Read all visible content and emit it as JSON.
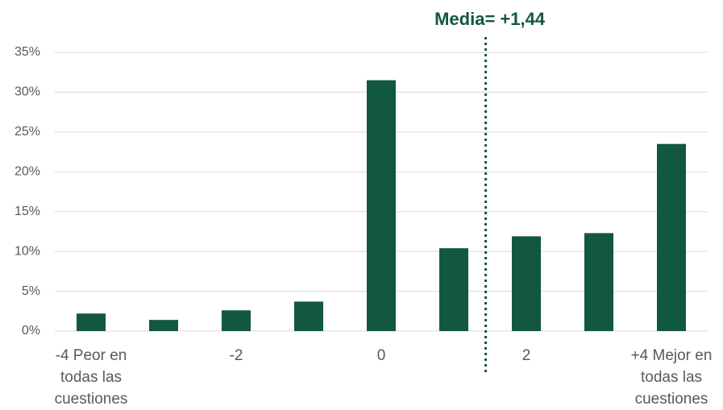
{
  "chart_data": {
    "type": "bar",
    "categories": [
      "-4 Peor en todas las cuestiones",
      null,
      "-2",
      null,
      "0",
      null,
      "2",
      null,
      "+4 Mejor en todas las cuestiones"
    ],
    "values": [
      2.2,
      1.4,
      2.6,
      3.7,
      31.5,
      10.4,
      11.9,
      12.3,
      23.5
    ],
    "color": "#12573f",
    "xlim": [
      -4,
      4
    ],
    "ylim": [
      0,
      35
    ],
    "yticks": [
      {
        "value": 0,
        "label": "0%"
      },
      {
        "value": 5,
        "label": "5%"
      },
      {
        "value": 10,
        "label": "10%"
      },
      {
        "value": 15,
        "label": "15%"
      },
      {
        "value": 20,
        "label": "20%"
      },
      {
        "value": 25,
        "label": "25%"
      },
      {
        "value": 30,
        "label": "30%"
      },
      {
        "value": 35,
        "label": "35%"
      }
    ],
    "grid": true,
    "mean": {
      "value": 1.44,
      "label": "Media= +1,44"
    }
  }
}
